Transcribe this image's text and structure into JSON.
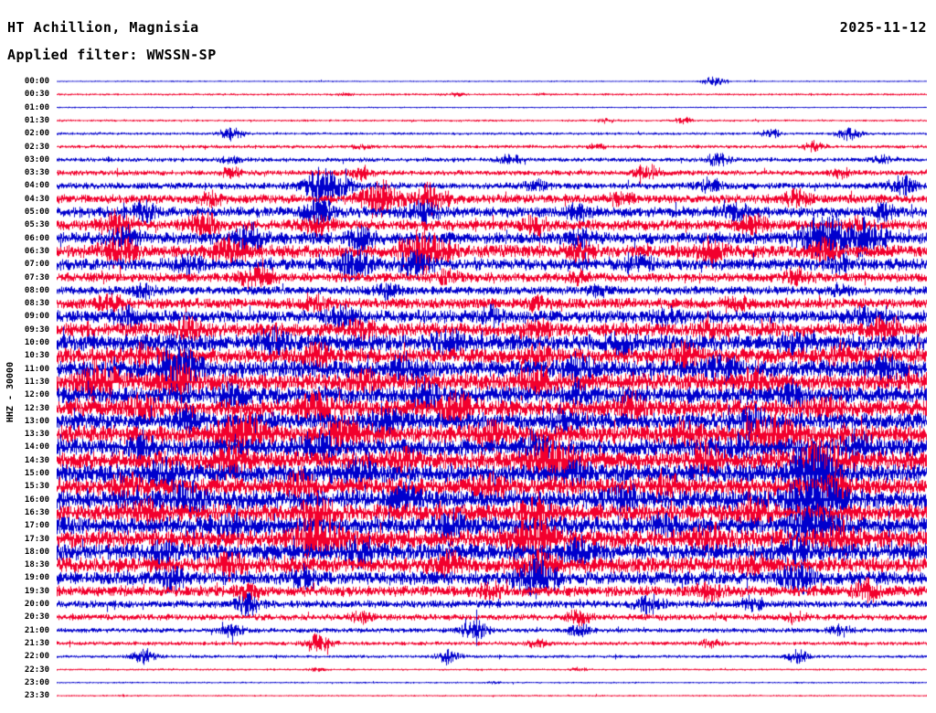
{
  "header": {
    "station": "HT Achillion, Magnisia",
    "date": "2025-11-12",
    "filter_label": "Applied filter: WWSSN-SP"
  },
  "axis": {
    "ylabel": "HHZ - 30000"
  },
  "colors": {
    "background": "#ffffff",
    "text": "#000000",
    "trace_even": "#0000cd",
    "trace_odd": "#f2002d"
  },
  "chart_data": {
    "type": "line",
    "variant": "helicorder-seismogram",
    "title": "HT Achillion, Magnisia",
    "date": "2025-11-12",
    "filter": "WWSSN-SP",
    "channel": "HHZ",
    "gain": "30000",
    "minutes_per_row": 30,
    "rows_total": 48,
    "legend": "alternating blue/red half-hour traces, amplitude envelope per row (activity 0-1) with bursts as [position 0-1, strength 0-1]",
    "rows": [
      {
        "time": "00:00",
        "activity": 0.035,
        "bursts": [
          [
            0.755,
            0.22
          ]
        ]
      },
      {
        "time": "00:30",
        "activity": 0.05,
        "bursts": [
          [
            0.33,
            0.05
          ],
          [
            0.46,
            0.07
          ],
          [
            0.56,
            0.05
          ]
        ]
      },
      {
        "time": "01:00",
        "activity": 0.035,
        "bursts": []
      },
      {
        "time": "01:30",
        "activity": 0.05,
        "bursts": [
          [
            0.63,
            0.1
          ],
          [
            0.72,
            0.13
          ]
        ]
      },
      {
        "time": "02:00",
        "activity": 0.06,
        "bursts": [
          [
            0.2,
            0.28
          ],
          [
            0.82,
            0.18
          ],
          [
            0.91,
            0.3
          ]
        ]
      },
      {
        "time": "02:30",
        "activity": 0.08,
        "bursts": [
          [
            0.35,
            0.1
          ],
          [
            0.62,
            0.1
          ],
          [
            0.87,
            0.22
          ]
        ]
      },
      {
        "time": "03:00",
        "activity": 0.1,
        "bursts": [
          [
            0.2,
            0.18
          ],
          [
            0.52,
            0.22
          ],
          [
            0.76,
            0.28
          ],
          [
            0.95,
            0.18
          ]
        ]
      },
      {
        "time": "03:30",
        "activity": 0.12,
        "bursts": [
          [
            0.2,
            0.22
          ],
          [
            0.35,
            0.28
          ],
          [
            0.68,
            0.32
          ],
          [
            0.9,
            0.18
          ]
        ]
      },
      {
        "time": "04:00",
        "activity": 0.15,
        "bursts": [
          [
            0.31,
            0.85
          ],
          [
            0.55,
            0.22
          ],
          [
            0.75,
            0.28
          ],
          [
            0.97,
            0.4
          ]
        ]
      },
      {
        "time": "04:30",
        "activity": 0.2,
        "bursts": [
          [
            0.18,
            0.28
          ],
          [
            0.37,
            0.75
          ],
          [
            0.43,
            0.55
          ],
          [
            0.65,
            0.28
          ],
          [
            0.85,
            0.32
          ]
        ]
      },
      {
        "time": "05:00",
        "activity": 0.24,
        "bursts": [
          [
            0.1,
            0.38
          ],
          [
            0.3,
            0.48
          ],
          [
            0.42,
            0.42
          ],
          [
            0.6,
            0.28
          ],
          [
            0.78,
            0.33
          ],
          [
            0.95,
            0.28
          ]
        ]
      },
      {
        "time": "05:30",
        "activity": 0.24,
        "bursts": [
          [
            0.07,
            0.52
          ],
          [
            0.17,
            0.48
          ],
          [
            0.3,
            0.38
          ],
          [
            0.55,
            0.33
          ],
          [
            0.8,
            0.38
          ],
          [
            0.92,
            0.28
          ]
        ]
      },
      {
        "time": "06:00",
        "activity": 0.27,
        "bursts": [
          [
            0.08,
            0.48
          ],
          [
            0.22,
            0.52
          ],
          [
            0.35,
            0.38
          ],
          [
            0.6,
            0.33
          ],
          [
            0.88,
            0.95
          ],
          [
            0.93,
            0.75
          ]
        ]
      },
      {
        "time": "06:30",
        "activity": 0.29,
        "bursts": [
          [
            0.07,
            0.65
          ],
          [
            0.2,
            0.6
          ],
          [
            0.42,
            0.9
          ],
          [
            0.6,
            0.38
          ],
          [
            0.75,
            0.48
          ],
          [
            0.88,
            0.42
          ]
        ]
      },
      {
        "time": "07:00",
        "activity": 0.27,
        "bursts": [
          [
            0.15,
            0.38
          ],
          [
            0.34,
            0.65
          ],
          [
            0.41,
            0.55
          ],
          [
            0.67,
            0.33
          ],
          [
            0.9,
            0.28
          ]
        ]
      },
      {
        "time": "07:30",
        "activity": 0.21,
        "bursts": [
          [
            0.23,
            0.48
          ],
          [
            0.45,
            0.28
          ],
          [
            0.6,
            0.22
          ],
          [
            0.85,
            0.28
          ]
        ]
      },
      {
        "time": "08:00",
        "activity": 0.19,
        "bursts": [
          [
            0.1,
            0.28
          ],
          [
            0.38,
            0.32
          ],
          [
            0.62,
            0.22
          ],
          [
            0.9,
            0.22
          ]
        ]
      },
      {
        "time": "08:30",
        "activity": 0.24,
        "bursts": [
          [
            0.06,
            0.32
          ],
          [
            0.3,
            0.28
          ],
          [
            0.55,
            0.28
          ],
          [
            0.78,
            0.28
          ]
        ]
      },
      {
        "time": "09:00",
        "activity": 0.29,
        "bursts": [
          [
            0.08,
            0.38
          ],
          [
            0.33,
            0.42
          ],
          [
            0.5,
            0.32
          ],
          [
            0.7,
            0.32
          ],
          [
            0.93,
            0.38
          ]
        ]
      },
      {
        "time": "09:30",
        "activity": 0.31,
        "bursts": [
          [
            0.15,
            0.38
          ],
          [
            0.35,
            0.38
          ],
          [
            0.55,
            0.38
          ],
          [
            0.75,
            0.32
          ],
          [
            0.95,
            0.42
          ]
        ]
      },
      {
        "time": "10:00",
        "activity": 0.38,
        "bursts": [
          [
            0.25,
            0.48
          ],
          [
            0.45,
            0.42
          ],
          [
            0.65,
            0.38
          ],
          [
            0.85,
            0.42
          ]
        ]
      },
      {
        "time": "10:30",
        "activity": 0.36,
        "bursts": [
          [
            0.1,
            0.38
          ],
          [
            0.3,
            0.42
          ],
          [
            0.55,
            0.38
          ],
          [
            0.72,
            0.48
          ],
          [
            0.9,
            0.38
          ]
        ]
      },
      {
        "time": "11:00",
        "activity": 0.4,
        "bursts": [
          [
            0.14,
            0.85
          ],
          [
            0.4,
            0.42
          ],
          [
            0.6,
            0.38
          ],
          [
            0.76,
            0.55
          ],
          [
            0.95,
            0.42
          ]
        ]
      },
      {
        "time": "11:30",
        "activity": 0.4,
        "bursts": [
          [
            0.05,
            0.75
          ],
          [
            0.14,
            0.65
          ],
          [
            0.35,
            0.42
          ],
          [
            0.55,
            0.48
          ],
          [
            0.8,
            0.42
          ]
        ]
      },
      {
        "time": "12:00",
        "activity": 0.38,
        "bursts": [
          [
            0.2,
            0.42
          ],
          [
            0.42,
            0.48
          ],
          [
            0.6,
            0.38
          ],
          [
            0.85,
            0.38
          ]
        ]
      },
      {
        "time": "12:30",
        "activity": 0.4,
        "bursts": [
          [
            0.1,
            0.38
          ],
          [
            0.3,
            0.55
          ],
          [
            0.46,
            0.52
          ],
          [
            0.66,
            0.42
          ],
          [
            0.88,
            0.38
          ]
        ]
      },
      {
        "time": "13:00",
        "activity": 0.38,
        "bursts": [
          [
            0.15,
            0.42
          ],
          [
            0.38,
            0.48
          ],
          [
            0.58,
            0.42
          ],
          [
            0.8,
            0.48
          ]
        ]
      },
      {
        "time": "13:30",
        "activity": 0.42,
        "bursts": [
          [
            0.21,
            0.95
          ],
          [
            0.33,
            0.65
          ],
          [
            0.5,
            0.42
          ],
          [
            0.72,
            0.48
          ],
          [
            0.82,
            0.8
          ]
        ]
      },
      {
        "time": "14:00",
        "activity": 0.4,
        "bursts": [
          [
            0.1,
            0.42
          ],
          [
            0.3,
            0.48
          ],
          [
            0.55,
            0.42
          ],
          [
            0.78,
            0.42
          ],
          [
            0.92,
            0.48
          ]
        ]
      },
      {
        "time": "14:30",
        "activity": 0.42,
        "bursts": [
          [
            0.2,
            0.48
          ],
          [
            0.4,
            0.42
          ],
          [
            0.57,
            0.95
          ],
          [
            0.75,
            0.48
          ],
          [
            0.88,
            0.85
          ]
        ]
      },
      {
        "time": "15:00",
        "activity": 0.42,
        "bursts": [
          [
            0.12,
            0.48
          ],
          [
            0.35,
            0.42
          ],
          [
            0.6,
            0.42
          ],
          [
            0.87,
            1.05
          ]
        ]
      },
      {
        "time": "15:30",
        "activity": 0.4,
        "bursts": [
          [
            0.08,
            0.42
          ],
          [
            0.28,
            0.48
          ],
          [
            0.5,
            0.42
          ],
          [
            0.7,
            0.42
          ],
          [
            0.9,
            0.48
          ]
        ]
      },
      {
        "time": "16:00",
        "activity": 0.42,
        "bursts": [
          [
            0.15,
            0.52
          ],
          [
            0.4,
            0.48
          ],
          [
            0.65,
            0.48
          ],
          [
            0.87,
            1.15
          ]
        ]
      },
      {
        "time": "16:30",
        "activity": 0.4,
        "bursts": [
          [
            0.1,
            0.48
          ],
          [
            0.3,
            0.52
          ],
          [
            0.55,
            0.48
          ],
          [
            0.8,
            0.42
          ]
        ]
      },
      {
        "time": "17:00",
        "activity": 0.4,
        "bursts": [
          [
            0.2,
            0.48
          ],
          [
            0.45,
            0.48
          ],
          [
            0.7,
            0.42
          ],
          [
            0.87,
            0.85
          ]
        ]
      },
      {
        "time": "17:30",
        "activity": 0.42,
        "bursts": [
          [
            0.3,
            0.95
          ],
          [
            0.55,
            0.85
          ],
          [
            0.75,
            0.48
          ],
          [
            0.9,
            0.48
          ]
        ]
      },
      {
        "time": "18:00",
        "activity": 0.38,
        "bursts": [
          [
            0.12,
            0.42
          ],
          [
            0.35,
            0.48
          ],
          [
            0.6,
            0.48
          ],
          [
            0.85,
            0.42
          ]
        ]
      },
      {
        "time": "18:30",
        "activity": 0.36,
        "bursts": [
          [
            0.2,
            0.42
          ],
          [
            0.45,
            0.42
          ],
          [
            0.55,
            0.65
          ],
          [
            0.8,
            0.38
          ]
        ]
      },
      {
        "time": "19:00",
        "activity": 0.3,
        "bursts": [
          [
            0.13,
            0.48
          ],
          [
            0.28,
            0.42
          ],
          [
            0.55,
            0.75
          ],
          [
            0.85,
            0.55
          ]
        ]
      },
      {
        "time": "19:30",
        "activity": 0.24,
        "bursts": [
          [
            0.22,
            0.32
          ],
          [
            0.5,
            0.32
          ],
          [
            0.75,
            0.32
          ],
          [
            0.93,
            0.38
          ]
        ]
      },
      {
        "time": "20:00",
        "activity": 0.17,
        "bursts": [
          [
            0.22,
            0.38
          ],
          [
            0.68,
            0.38
          ],
          [
            0.8,
            0.28
          ]
        ]
      },
      {
        "time": "20:30",
        "activity": 0.14,
        "bursts": [
          [
            0.35,
            0.22
          ],
          [
            0.6,
            0.28
          ],
          [
            0.85,
            0.22
          ]
        ]
      },
      {
        "time": "21:00",
        "activity": 0.11,
        "bursts": [
          [
            0.2,
            0.28
          ],
          [
            0.48,
            0.42
          ],
          [
            0.6,
            0.28
          ],
          [
            0.9,
            0.22
          ]
        ]
      },
      {
        "time": "21:30",
        "activity": 0.09,
        "bursts": [
          [
            0.3,
            0.38
          ],
          [
            0.55,
            0.18
          ],
          [
            0.75,
            0.18
          ]
        ]
      },
      {
        "time": "22:00",
        "activity": 0.07,
        "bursts": [
          [
            0.1,
            0.32
          ],
          [
            0.45,
            0.28
          ],
          [
            0.85,
            0.28
          ]
        ]
      },
      {
        "time": "22:30",
        "activity": 0.045,
        "bursts": [
          [
            0.3,
            0.07
          ],
          [
            0.6,
            0.07
          ]
        ]
      },
      {
        "time": "23:00",
        "activity": 0.04,
        "bursts": [
          [
            0.5,
            0.05
          ]
        ]
      },
      {
        "time": "23:30",
        "activity": 0.04,
        "bursts": []
      }
    ]
  }
}
